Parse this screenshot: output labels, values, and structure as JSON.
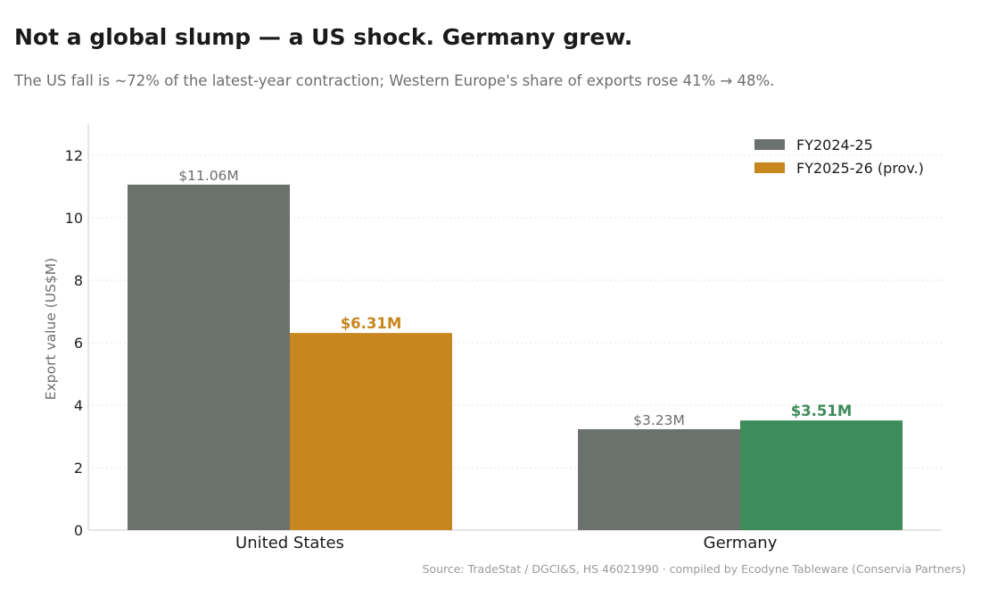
{
  "header": {
    "title": "Not a global slump — a US shock. Germany grew.",
    "subtitle": "The US fall is ~72% of the latest-year contraction; Western Europe's share of exports rose 41% → 48%."
  },
  "footer": {
    "source": "Source: TradeStat / DGCI&S, HS 46021990 · compiled by Ecodyne Tableware (Conservia Partners)"
  },
  "chart_data": {
    "type": "bar",
    "categories": [
      "United States",
      "Germany"
    ],
    "series": [
      {
        "name": "FY2024-25",
        "values": [
          11.06,
          3.23
        ],
        "labels": [
          "$11.06M",
          "$3.23M"
        ],
        "colors": [
          "#6b716c",
          "#6b716c"
        ],
        "label_colors": [
          "#6e6e6e",
          "#6e6e6e"
        ],
        "label_bold": false
      },
      {
        "name": "FY2025-26 (prov.)",
        "values": [
          6.31,
          3.51
        ],
        "labels": [
          "$6.31M",
          "$3.51M"
        ],
        "colors": [
          "#c8861f",
          "#3d8c5a"
        ],
        "label_colors": [
          "#c8861f",
          "#3d8c5a"
        ],
        "label_bold": true
      }
    ],
    "ylabel": "Export value (US$M)",
    "xlabel": "",
    "ylim": [
      0,
      13
    ],
    "yticks": [
      0,
      2,
      4,
      6,
      8,
      10,
      12
    ],
    "grid": "horizontal dotted",
    "legend": "top-right"
  }
}
